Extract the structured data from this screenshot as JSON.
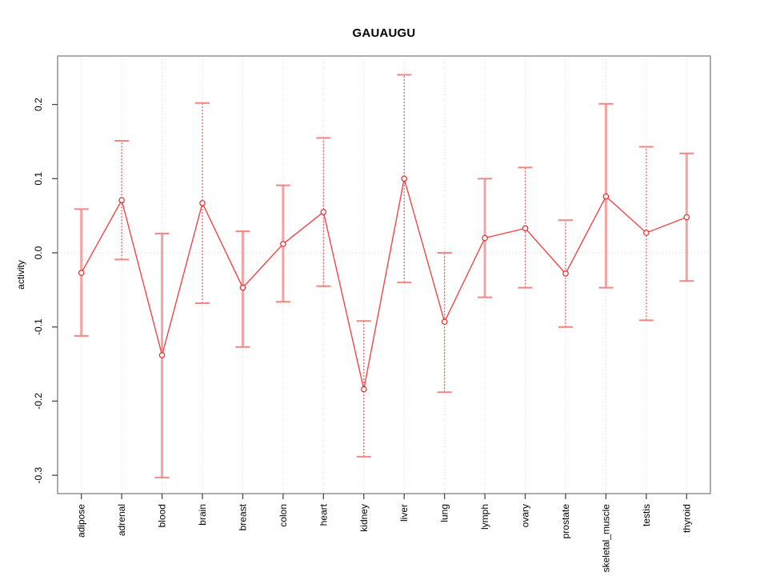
{
  "title": "GAUAUGU",
  "chart_data": {
    "type": "line",
    "title": "GAUAUGU",
    "xlabel": "",
    "ylabel": "activity",
    "legend": "none",
    "grid": "vertical dotted gridlines at each category plus dotted horizontal zero line",
    "point_marker": "open-circle",
    "error_bars": true,
    "ylim": [
      -0.3247,
      0.2654
    ],
    "yticks": [
      0.2,
      0.1,
      0.0,
      -0.1,
      -0.2,
      -0.3
    ],
    "categories": [
      "adipose",
      "adrenal",
      "blood",
      "brain",
      "breast",
      "colon",
      "heart",
      "kidney",
      "liver",
      "lung",
      "lymph",
      "ovary",
      "prostate",
      "skeletal_muscle",
      "testis",
      "thyroid"
    ],
    "series": [
      {
        "name": "activity",
        "values": [
          -0.027,
          0.071,
          -0.138,
          0.067,
          -0.047,
          0.012,
          0.055,
          -0.184,
          0.1,
          -0.093,
          0.02,
          0.033,
          -0.028,
          0.076,
          0.027,
          0.048
        ],
        "lower": [
          -0.112,
          -0.009,
          -0.303,
          -0.068,
          -0.127,
          -0.066,
          -0.045,
          -0.275,
          -0.04,
          -0.188,
          -0.06,
          -0.047,
          -0.1,
          -0.047,
          -0.091,
          -0.038
        ],
        "upper": [
          0.059,
          0.151,
          0.026,
          0.202,
          0.029,
          0.091,
          0.155,
          -0.092,
          0.24,
          0.0,
          0.1,
          0.115,
          0.044,
          0.201,
          0.143,
          0.134
        ]
      }
    ],
    "bar_styles": [
      "solid",
      "dashed",
      "solid",
      "dashed",
      "solid",
      "solid",
      "dashed",
      "dashed",
      "dashed",
      "dashed",
      "solid",
      "dashed",
      "dashed",
      "solid",
      "dashed",
      "solid"
    ],
    "colors": {
      "line": "#f04848",
      "point": "#e03030",
      "bar_solid": "#f5a2a2",
      "bar_dashed": "#e05555",
      "cap": "#f28585",
      "grid": "#d6d6d6",
      "frame": "#8c8c8c",
      "tick": "#4a4a4a",
      "text": "#000000"
    }
  }
}
